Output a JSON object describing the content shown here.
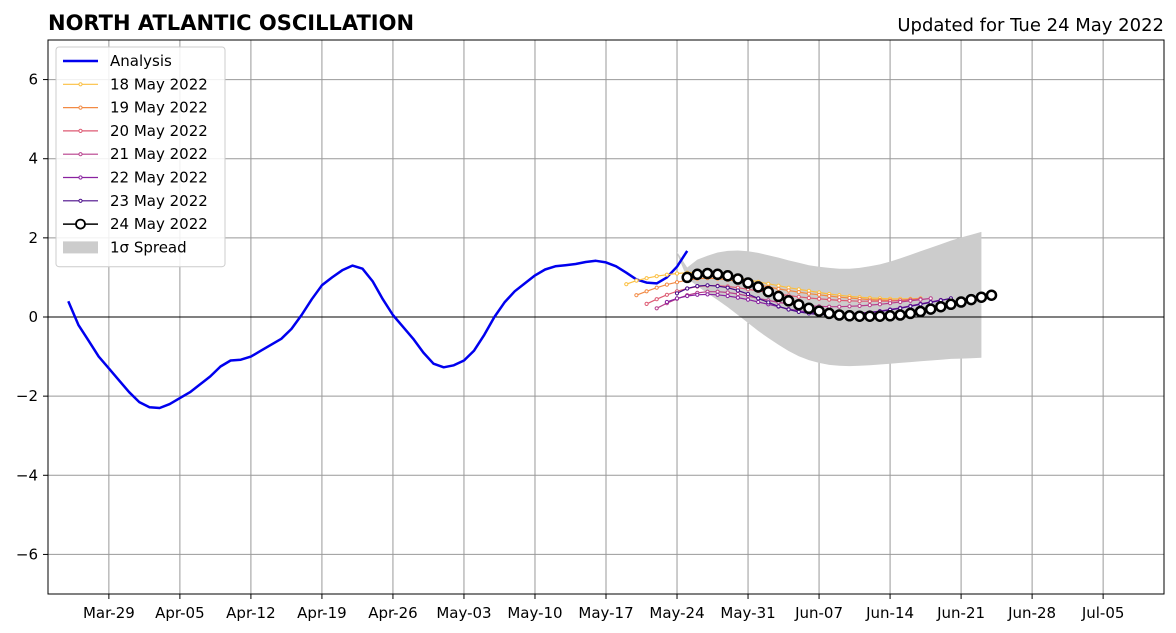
{
  "chart_data": {
    "type": "line",
    "title": "NORTH ATLANTIC OSCILLATION",
    "subtitle": "Updated for Tue 24 May 2022",
    "xlabel": "",
    "ylabel": "",
    "xlim": [
      "2022-03-23",
      "2022-07-11"
    ],
    "ylim": [
      -7,
      7
    ],
    "x_tick_labels": [
      {
        "date": "2022-03-29",
        "label": "Mar-29"
      },
      {
        "date": "2022-04-05",
        "label": "Apr-05"
      },
      {
        "date": "2022-04-12",
        "label": "Apr-12"
      },
      {
        "date": "2022-04-19",
        "label": "Apr-19"
      },
      {
        "date": "2022-04-26",
        "label": "Apr-26"
      },
      {
        "date": "2022-05-03",
        "label": "May-03"
      },
      {
        "date": "2022-05-10",
        "label": "May-10"
      },
      {
        "date": "2022-05-17",
        "label": "May-17"
      },
      {
        "date": "2022-05-24",
        "label": "May-24"
      },
      {
        "date": "2022-05-31",
        "label": "May-31"
      },
      {
        "date": "2022-06-07",
        "label": "Jun-07"
      },
      {
        "date": "2022-06-14",
        "label": "Jun-14"
      },
      {
        "date": "2022-06-21",
        "label": "Jun-21"
      },
      {
        "date": "2022-06-28",
        "label": "Jun-28"
      },
      {
        "date": "2022-07-05",
        "label": "Jul-05"
      }
    ],
    "y_ticks": [
      -6,
      -4,
      -2,
      0,
      2,
      4,
      6
    ],
    "y_tick_labels": [
      "−6",
      "−4",
      "−2",
      "0",
      "2",
      "4",
      "6"
    ],
    "grid": true,
    "legend_position": "top-left",
    "analysis": {
      "name": "Analysis",
      "color": "#0000ee",
      "x_start": "2022-03-25",
      "values": [
        0.4,
        -0.2,
        -0.6,
        -1.0,
        -1.3,
        -1.6,
        -1.9,
        -2.15,
        -2.28,
        -2.3,
        -2.2,
        -2.05,
        -1.9,
        -1.7,
        -1.5,
        -1.25,
        -1.1,
        -1.08,
        -1.0,
        -0.85,
        -0.7,
        -0.55,
        -0.3,
        0.05,
        0.45,
        0.8,
        1.0,
        1.18,
        1.3,
        1.22,
        0.9,
        0.45,
        0.05,
        -0.25,
        -0.55,
        -0.9,
        -1.18,
        -1.27,
        -1.22,
        -1.1,
        -0.85,
        -0.45,
        0.0,
        0.37,
        0.65,
        0.85,
        1.05,
        1.2,
        1.28,
        1.31,
        1.34,
        1.39,
        1.42,
        1.38,
        1.28,
        1.12,
        0.95,
        0.87,
        0.85,
        1.0,
        1.27,
        1.67
      ]
    },
    "spread": {
      "name": "1σ Spread",
      "color": "#cccccc",
      "x_start": "2022-05-24",
      "upper": [
        1.65,
        1.25,
        1.45,
        1.55,
        1.63,
        1.67,
        1.68,
        1.66,
        1.62,
        1.56,
        1.5,
        1.43,
        1.37,
        1.31,
        1.27,
        1.24,
        1.22,
        1.22,
        1.24,
        1.28,
        1.33,
        1.4,
        1.48,
        1.57,
        1.66,
        1.75,
        1.84,
        1.93,
        2.01,
        2.08,
        2.15
      ],
      "lower": [
        1.6,
        0.98,
        0.78,
        0.6,
        0.43,
        0.25,
        0.05,
        -0.15,
        -0.35,
        -0.53,
        -0.7,
        -0.86,
        -0.99,
        -1.09,
        -1.16,
        -1.21,
        -1.23,
        -1.24,
        -1.23,
        -1.22,
        -1.2,
        -1.18,
        -1.16,
        -1.14,
        -1.12,
        -1.1,
        -1.08,
        -1.06,
        -1.05,
        -1.04,
        -1.03
      ]
    },
    "forecasts": [
      {
        "name": "18 May 2022",
        "color": "#fbbf40",
        "x_start": "2022-05-19",
        "values": [
          0.83,
          0.92,
          0.98,
          1.03,
          1.07,
          1.1,
          1.12,
          1.12,
          1.1,
          1.07,
          1.03,
          0.99,
          0.94,
          0.89,
          0.84,
          0.79,
          0.74,
          0.7,
          0.66,
          0.62,
          0.58,
          0.55,
          0.52,
          0.5,
          0.48,
          0.47,
          0.46,
          0.46,
          0.46,
          0.47
        ]
      },
      {
        "name": "19 May 2022",
        "color": "#f28a44",
        "x_start": "2022-05-20",
        "values": [
          0.55,
          0.65,
          0.74,
          0.82,
          0.88,
          0.93,
          0.97,
          0.98,
          0.97,
          0.94,
          0.9,
          0.86,
          0.81,
          0.76,
          0.71,
          0.67,
          0.63,
          0.59,
          0.56,
          0.53,
          0.5,
          0.48,
          0.46,
          0.44,
          0.43,
          0.42,
          0.42,
          0.42
        ]
      },
      {
        "name": "20 May 2022",
        "color": "#dd5a73",
        "x_start": "2022-05-21",
        "values": [
          0.33,
          0.45,
          0.56,
          0.65,
          0.72,
          0.77,
          0.79,
          0.79,
          0.77,
          0.74,
          0.7,
          0.66,
          0.62,
          0.58,
          0.54,
          0.51,
          0.48,
          0.46,
          0.44,
          0.42,
          0.41,
          0.4,
          0.4,
          0.4,
          0.4,
          0.42,
          0.44,
          0.46
        ]
      },
      {
        "name": "21 May 2022",
        "color": "#b73f8c",
        "x_start": "2022-05-22",
        "values": [
          0.22,
          0.35,
          0.46,
          0.55,
          0.61,
          0.64,
          0.64,
          0.62,
          0.58,
          0.53,
          0.47,
          0.42,
          0.37,
          0.33,
          0.3,
          0.28,
          0.27,
          0.26,
          0.26,
          0.27,
          0.28,
          0.3,
          0.32,
          0.35,
          0.38,
          0.41,
          0.44,
          0.47
        ]
      },
      {
        "name": "22 May 2022",
        "color": "#8a22a0",
        "x_start": "2022-05-23",
        "values": [
          0.38,
          0.47,
          0.53,
          0.56,
          0.57,
          0.56,
          0.53,
          0.49,
          0.44,
          0.38,
          0.32,
          0.26,
          0.2,
          0.16,
          0.12,
          0.1,
          0.08,
          0.08,
          0.08,
          0.1,
          0.12,
          0.15,
          0.19,
          0.23,
          0.28,
          0.33,
          0.38,
          0.43
        ]
      },
      {
        "name": "23 May 2022",
        "color": "#4a0c8a",
        "x_start": "2022-05-24",
        "values": [
          0.6,
          0.72,
          0.78,
          0.8,
          0.78,
          0.74,
          0.67,
          0.58,
          0.47,
          0.37,
          0.27,
          0.19,
          0.13,
          0.09,
          0.06,
          0.05,
          0.05,
          0.06,
          0.08,
          0.11,
          0.14,
          0.18,
          0.22,
          0.27,
          0.32,
          0.37,
          0.42,
          0.47
        ]
      },
      {
        "name": "24 May 2022",
        "color": "#000000",
        "x_start": "2022-05-25",
        "values": [
          1.0,
          1.08,
          1.1,
          1.08,
          1.04,
          0.96,
          0.86,
          0.76,
          0.64,
          0.52,
          0.41,
          0.31,
          0.22,
          0.15,
          0.09,
          0.05,
          0.03,
          0.02,
          0.02,
          0.02,
          0.03,
          0.05,
          0.09,
          0.14,
          0.2,
          0.26,
          0.32,
          0.38,
          0.44,
          0.5,
          0.55
        ]
      }
    ]
  }
}
